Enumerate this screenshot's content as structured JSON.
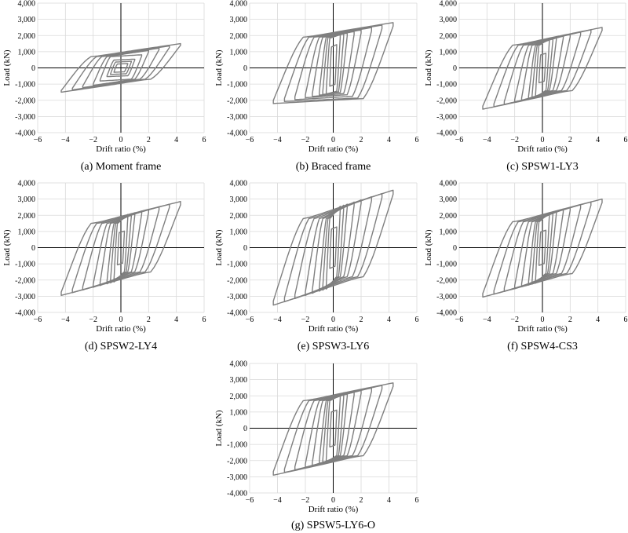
{
  "figure": {
    "background": "#ffffff",
    "curve_color": "#7f7f7f",
    "grid_color": "#d9d9d9"
  },
  "chart_data": [
    {
      "type": "line",
      "caption": "(a) Moment frame",
      "xlabel": "Drift ratio (%)",
      "ylabel": "Load (kN)",
      "xlim": [
        -6,
        6
      ],
      "ylim": [
        -4000,
        4000
      ],
      "xticks": [
        "−6",
        "−4",
        "−2",
        "0",
        "2",
        "4",
        "6"
      ],
      "yticks": [
        "4,000",
        "3,000",
        "2,000",
        "1,000",
        "0",
        "-1,000",
        "-2,000",
        "-3,000",
        "-4,000"
      ],
      "grid": true,
      "series": [
        {
          "name": "",
          "peak_drift_levels": [
            0.5,
            0.75,
            1.0,
            1.5,
            2.0,
            2.75,
            3.5,
            4.3
          ],
          "peak_load_pos": 1500,
          "peak_load_neg": -1500,
          "yield_drift": 2.0,
          "residual_load": 700
        }
      ]
    },
    {
      "type": "line",
      "caption": "(b) Braced frame",
      "xlabel": "Drift ratio (%)",
      "ylabel": "Load (kN)",
      "xlim": [
        -6,
        6
      ],
      "ylim": [
        -4000,
        4000
      ],
      "xticks": [
        "−6",
        "−4",
        "−2",
        "0",
        "2",
        "4",
        "6"
      ],
      "yticks": [
        "4,000",
        "3,000",
        "2,000",
        "1,000",
        "0",
        "-1,000",
        "-2,000",
        "-3,000",
        "-4,000"
      ],
      "grid": true,
      "series": [
        {
          "name": "",
          "peak_drift_levels": [
            0.25,
            0.5,
            0.75,
            1.0,
            1.5,
            2.0,
            2.75,
            3.5,
            4.3
          ],
          "peak_load_pos": 2800,
          "peak_load_neg": -2200,
          "yield_drift": 0.35,
          "residual_load": 1900
        }
      ]
    },
    {
      "type": "line",
      "caption": "(c) SPSW1-LY3",
      "xlabel": "Drift ratio (%)",
      "ylabel": "Load (kN)",
      "xlim": [
        -6,
        6
      ],
      "ylim": [
        -4000,
        4000
      ],
      "xticks": [
        "−6",
        "−4",
        "−2",
        "0",
        "2",
        "4",
        "6"
      ],
      "yticks": [
        "4,000",
        "3,000",
        "2,000",
        "1,000",
        "0",
        "-1,000",
        "-2,000",
        "-3,000",
        "-4,000"
      ],
      "grid": true,
      "series": [
        {
          "name": "",
          "peak_drift_levels": [
            0.25,
            0.5,
            0.75,
            1.0,
            1.5,
            2.0,
            2.75,
            3.5,
            4.3
          ],
          "peak_load_pos": 2500,
          "peak_load_neg": -2550,
          "yield_drift": 0.5,
          "residual_load": 1400
        }
      ]
    },
    {
      "type": "line",
      "caption": "(d) SPSW2-LY4",
      "xlabel": "Drift ratio (%)",
      "ylabel": "Load (kN)",
      "xlim": [
        -6,
        6
      ],
      "ylim": [
        -4000,
        4000
      ],
      "xticks": [
        "−6",
        "−4",
        "−2",
        "0",
        "2",
        "4",
        "6"
      ],
      "yticks": [
        "4,000",
        "3,000",
        "2,000",
        "1,000",
        "0",
        "-1,000",
        "-2,000",
        "-3,000",
        "-4,000"
      ],
      "grid": true,
      "series": [
        {
          "name": "",
          "peak_drift_levels": [
            0.25,
            0.5,
            0.75,
            1.0,
            1.5,
            2.0,
            2.75,
            3.5,
            4.3
          ],
          "peak_load_pos": 2850,
          "peak_load_neg": -2950,
          "yield_drift": 0.5,
          "residual_load": 1500
        }
      ]
    },
    {
      "type": "line",
      "caption": "(e) SPSW3-LY6",
      "xlabel": "Drift ratio (%)",
      "ylabel": "Load (kN)",
      "xlim": [
        -6,
        6
      ],
      "ylim": [
        -4000,
        4000
      ],
      "xticks": [
        "−6",
        "−4",
        "−2",
        "0",
        "2",
        "4",
        "6"
      ],
      "yticks": [
        "4,000",
        "3,000",
        "2,000",
        "1,000",
        "0",
        "-1,000",
        "-2,000",
        "-3,000",
        "-4,000"
      ],
      "grid": true,
      "series": [
        {
          "name": "",
          "peak_drift_levels": [
            0.25,
            0.5,
            0.75,
            1.0,
            1.5,
            2.0,
            2.75,
            3.5,
            4.3
          ],
          "peak_load_pos": 3550,
          "peak_load_neg": -3550,
          "yield_drift": 0.5,
          "residual_load": 1800
        }
      ]
    },
    {
      "type": "line",
      "caption": "(f) SPSW4-CS3",
      "xlabel": "Drift ratio (%)",
      "ylabel": "Load (kN)",
      "xlim": [
        -6,
        6
      ],
      "ylim": [
        -4000,
        4000
      ],
      "xticks": [
        "−6",
        "−4",
        "−2",
        "0",
        "2",
        "4",
        "6"
      ],
      "yticks": [
        "4,000",
        "3,000",
        "2,000",
        "1,000",
        "0",
        "-1,000",
        "-2,000",
        "-3,000",
        "-4,000"
      ],
      "grid": true,
      "series": [
        {
          "name": "",
          "peak_drift_levels": [
            0.25,
            0.5,
            0.75,
            1.0,
            1.5,
            2.0,
            2.75,
            3.5,
            4.3
          ],
          "peak_load_pos": 3000,
          "peak_load_neg": -3050,
          "yield_drift": 0.5,
          "residual_load": 1600
        }
      ]
    },
    {
      "type": "line",
      "caption": "(g) SPSW5-LY6-O",
      "xlabel": "Drift ratio (%)",
      "ylabel": "Load (kN)",
      "xlim": [
        -6,
        6
      ],
      "ylim": [
        -4000,
        4000
      ],
      "xticks": [
        "−6",
        "−4",
        "−2",
        "0",
        "2",
        "4",
        "6"
      ],
      "yticks": [
        "4,000",
        "3,000",
        "2,000",
        "1,000",
        "0",
        "-1,000",
        "-2,000",
        "-3,000",
        "-4,000"
      ],
      "grid": true,
      "series": [
        {
          "name": "",
          "peak_drift_levels": [
            0.25,
            0.5,
            0.75,
            1.0,
            1.5,
            2.0,
            2.75,
            3.5,
            4.3
          ],
          "peak_load_pos": 2800,
          "peak_load_neg": -2900,
          "yield_drift": 0.45,
          "residual_load": 1700
        }
      ]
    }
  ]
}
